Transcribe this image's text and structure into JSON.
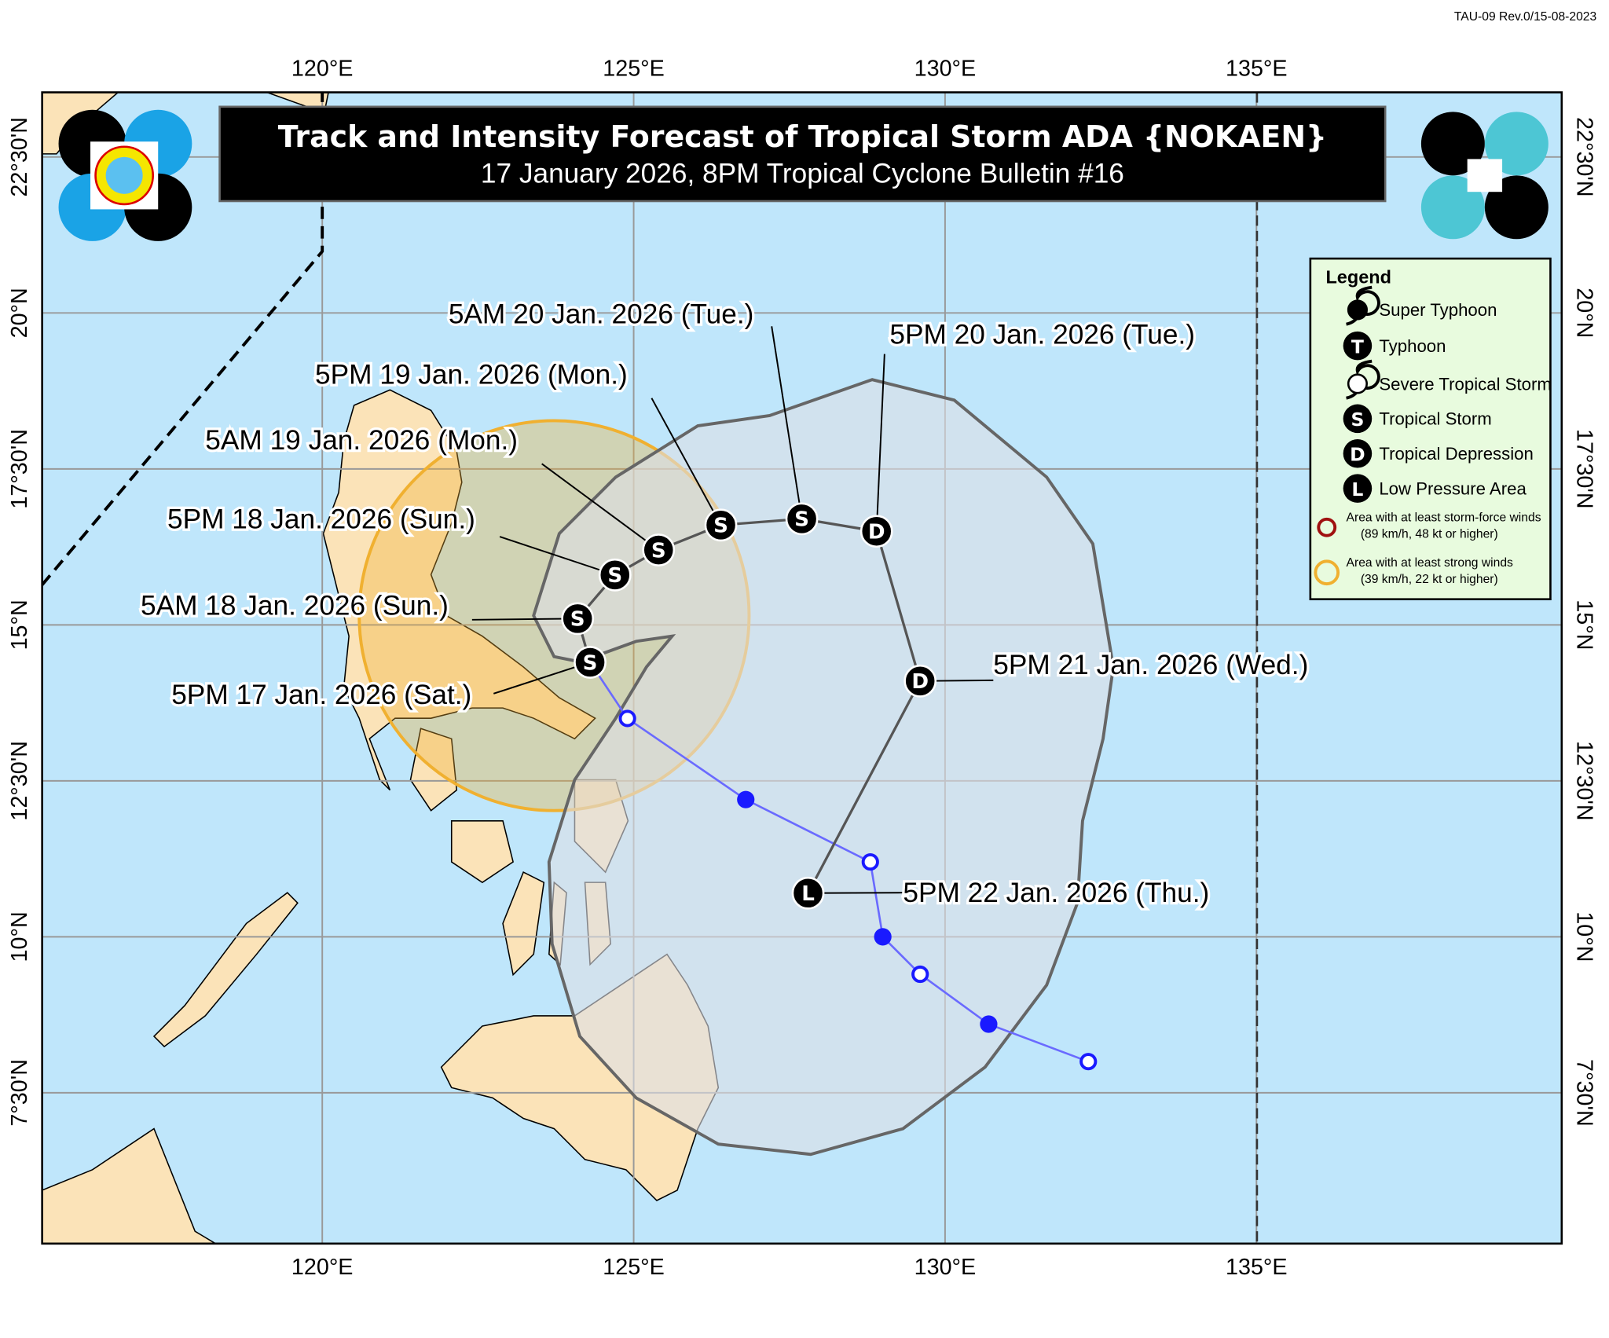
{
  "form_code": "TAU-09 Rev.0/15-08-2023",
  "header": {
    "title": "Track and Intensity Forecast of Tropical Storm ADA {NOKAEN}",
    "subtitle": "17 January 2026, 8PM Tropical Cyclone Bulletin #16"
  },
  "axes": {
    "lon_ticks": [
      {
        "value": 120,
        "label": "120°E"
      },
      {
        "value": 125,
        "label": "125°E"
      },
      {
        "value": 130,
        "label": "130°E"
      },
      {
        "value": 135,
        "label": "135°E"
      }
    ],
    "lat_ticks": [
      {
        "value": 22.5,
        "label": "22°30'N"
      },
      {
        "value": 20,
        "label": "20°N"
      },
      {
        "value": 17.5,
        "label": "17°30'N"
      },
      {
        "value": 15,
        "label": "15°N"
      },
      {
        "value": 12.5,
        "label": "12°30'N"
      },
      {
        "value": 10,
        "label": "10°N"
      },
      {
        "value": 7.5,
        "label": "7°30'N"
      }
    ]
  },
  "forecast_track": [
    {
      "label": "5PM 17 Jan. 2026 (Sat.)",
      "lon": 124.3,
      "lat": 14.4,
      "category": "S"
    },
    {
      "label": "5AM 18 Jan. 2026 (Sun.)",
      "lon": 124.1,
      "lat": 15.1,
      "category": "S"
    },
    {
      "label": "5PM 18 Jan. 2026 (Sun.)",
      "lon": 124.7,
      "lat": 15.8,
      "category": "S"
    },
    {
      "label": "5AM 19 Jan. 2026 (Mon.)",
      "lon": 125.4,
      "lat": 16.2,
      "category": "S"
    },
    {
      "label": "5PM 19 Jan. 2026 (Mon.)",
      "lon": 126.4,
      "lat": 16.6,
      "category": "S"
    },
    {
      "label": "5AM 20 Jan. 2026 (Tue.)",
      "lon": 127.7,
      "lat": 16.7,
      "category": "S"
    },
    {
      "label": "5PM 20 Jan. 2026 (Tue.)",
      "lon": 128.9,
      "lat": 16.5,
      "category": "D"
    },
    {
      "label": "5PM 21 Jan. 2026 (Wed.)",
      "lon": 129.6,
      "lat": 14.1,
      "category": "D"
    },
    {
      "label": "5PM 22 Jan. 2026 (Thu.)",
      "lon": 127.8,
      "lat": 10.7,
      "category": "L"
    }
  ],
  "past_track": [
    {
      "lon": 132.3,
      "lat": 8.0,
      "marker": "open"
    },
    {
      "lon": 130.7,
      "lat": 8.6,
      "marker": "filled"
    },
    {
      "lon": 129.6,
      "lat": 9.4,
      "marker": "open"
    },
    {
      "lon": 129.0,
      "lat": 10.0,
      "marker": "filled"
    },
    {
      "lon": 128.8,
      "lat": 11.2,
      "marker": "open"
    },
    {
      "lon": 126.8,
      "lat": 12.2,
      "marker": "filled"
    },
    {
      "lon": 124.9,
      "lat": 13.5,
      "marker": "open"
    }
  ],
  "legend": {
    "title": "Legend",
    "items": [
      {
        "symbol": "super-typhoon",
        "label": "Super Typhoon"
      },
      {
        "symbol": "T",
        "label": "Typhoon"
      },
      {
        "symbol": "severe-tropical-storm",
        "label": "Severe Tropical Storm"
      },
      {
        "symbol": "S",
        "label": "Tropical Storm"
      },
      {
        "symbol": "D",
        "label": "Tropical Depression"
      },
      {
        "symbol": "L",
        "label": "Low Pressure Area"
      }
    ],
    "wind_areas": [
      {
        "color": "#a01010",
        "line1": "Area with at least storm-force winds",
        "line2": "(89 km/h, 48 kt or higher)"
      },
      {
        "color": "#f0b030",
        "line1": "Area with at least strong winds",
        "line2": "(39 km/h, 22 kt or higher)"
      }
    ]
  },
  "logos": {
    "left": "PAGASA 1865"
  },
  "colors": {
    "sea": "#bfe6fb",
    "land": "#fbe3b8",
    "cone": "#dde0e6",
    "cone_edge": "#666",
    "strong_wind": "#f0b030",
    "past_track": "#1a1aff",
    "legend_bg": "#e8fbde",
    "title_bg": "#000"
  }
}
